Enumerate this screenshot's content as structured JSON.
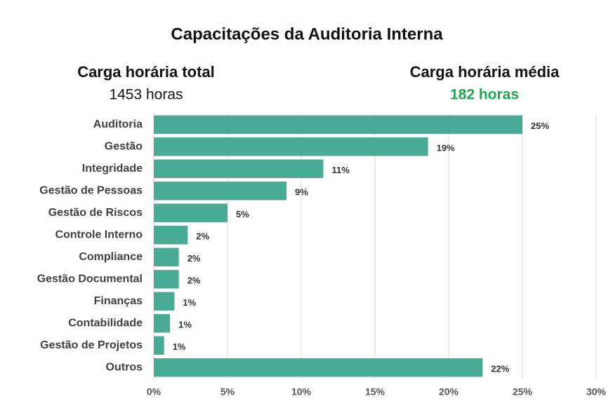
{
  "chart_data": {
    "type": "bar",
    "orientation": "horizontal",
    "title": "Capacitações da Auditoria Interna",
    "annotations": [
      {
        "text": "Carga horária total"
      },
      {
        "text": "1453 horas"
      },
      {
        "text": "Carga horária média"
      },
      {
        "text": "182 horas"
      }
    ],
    "categories": [
      "Auditoria",
      "Gestão",
      "Integridade",
      "Gestão de Pessoas",
      "Gestão de Riscos",
      "Controle Interno",
      "Compliance",
      "Gestão Documental",
      "Finanças",
      "Contabilidade",
      "Gestão de Projetos",
      "Outros"
    ],
    "values": [
      25,
      18.6,
      11.5,
      9,
      5,
      2.3,
      1.7,
      1.7,
      1.4,
      1.1,
      0.7,
      22.3
    ],
    "value_labels": [
      "25%",
      "19%",
      "11%",
      "9%",
      "5%",
      "2%",
      "2%",
      "2%",
      "1%",
      "1%",
      "1%",
      "22%"
    ],
    "color": "#4aab94",
    "xlim": [
      0,
      30
    ],
    "xticks": [
      {
        "value": 0,
        "label": "0%"
      },
      {
        "value": 5,
        "label": "5%"
      },
      {
        "value": 10,
        "label": "10%"
      },
      {
        "value": 15,
        "label": "15%"
      },
      {
        "value": 20,
        "label": "20%"
      },
      {
        "value": 25,
        "label": "25%"
      },
      {
        "value": 30,
        "label": "30%"
      }
    ],
    "grid": true
  }
}
